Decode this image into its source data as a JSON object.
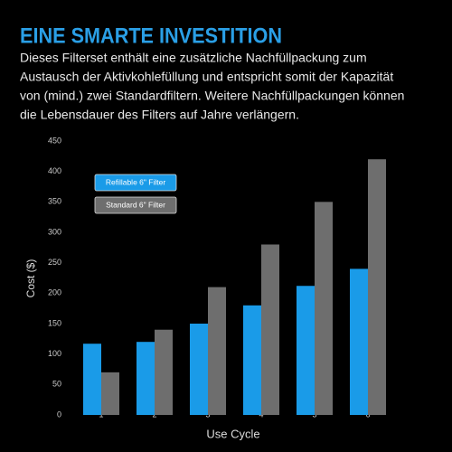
{
  "header": {
    "title": "EINE SMARTE INVESTITION",
    "text_lines": [
      "Dieses Filterset enthält eine zusätzliche Nachfüllpackung zum",
      "Austausch der Aktivkohlefüllung und entspricht somit der Kapazität",
      "von (mind.) zwei Standardfiltern. Weitere Nachfüllpackungen können",
      "die Lebensdauer des Filters auf Jahre verlängern."
    ]
  },
  "chart_data": {
    "type": "bar",
    "x_label": "Use Cycle",
    "y_label": "Cost ($)",
    "categories": [
      "1",
      "2",
      "3",
      "4",
      "5",
      "6"
    ],
    "series": [
      {
        "name": "Refillable 6\" Filter",
        "color": "#1a9be8",
        "values": [
          117,
          120,
          150,
          180,
          212,
          240
        ]
      },
      {
        "name": "Standard 6\" Filter",
        "color": "#6e6e6e",
        "values": [
          70,
          140,
          210,
          280,
          350,
          420
        ]
      }
    ],
    "ylim": [
      0,
      450
    ],
    "yticks": [
      0,
      50,
      100,
      150,
      200,
      250,
      300,
      350,
      400,
      450
    ],
    "grid": false
  }
}
